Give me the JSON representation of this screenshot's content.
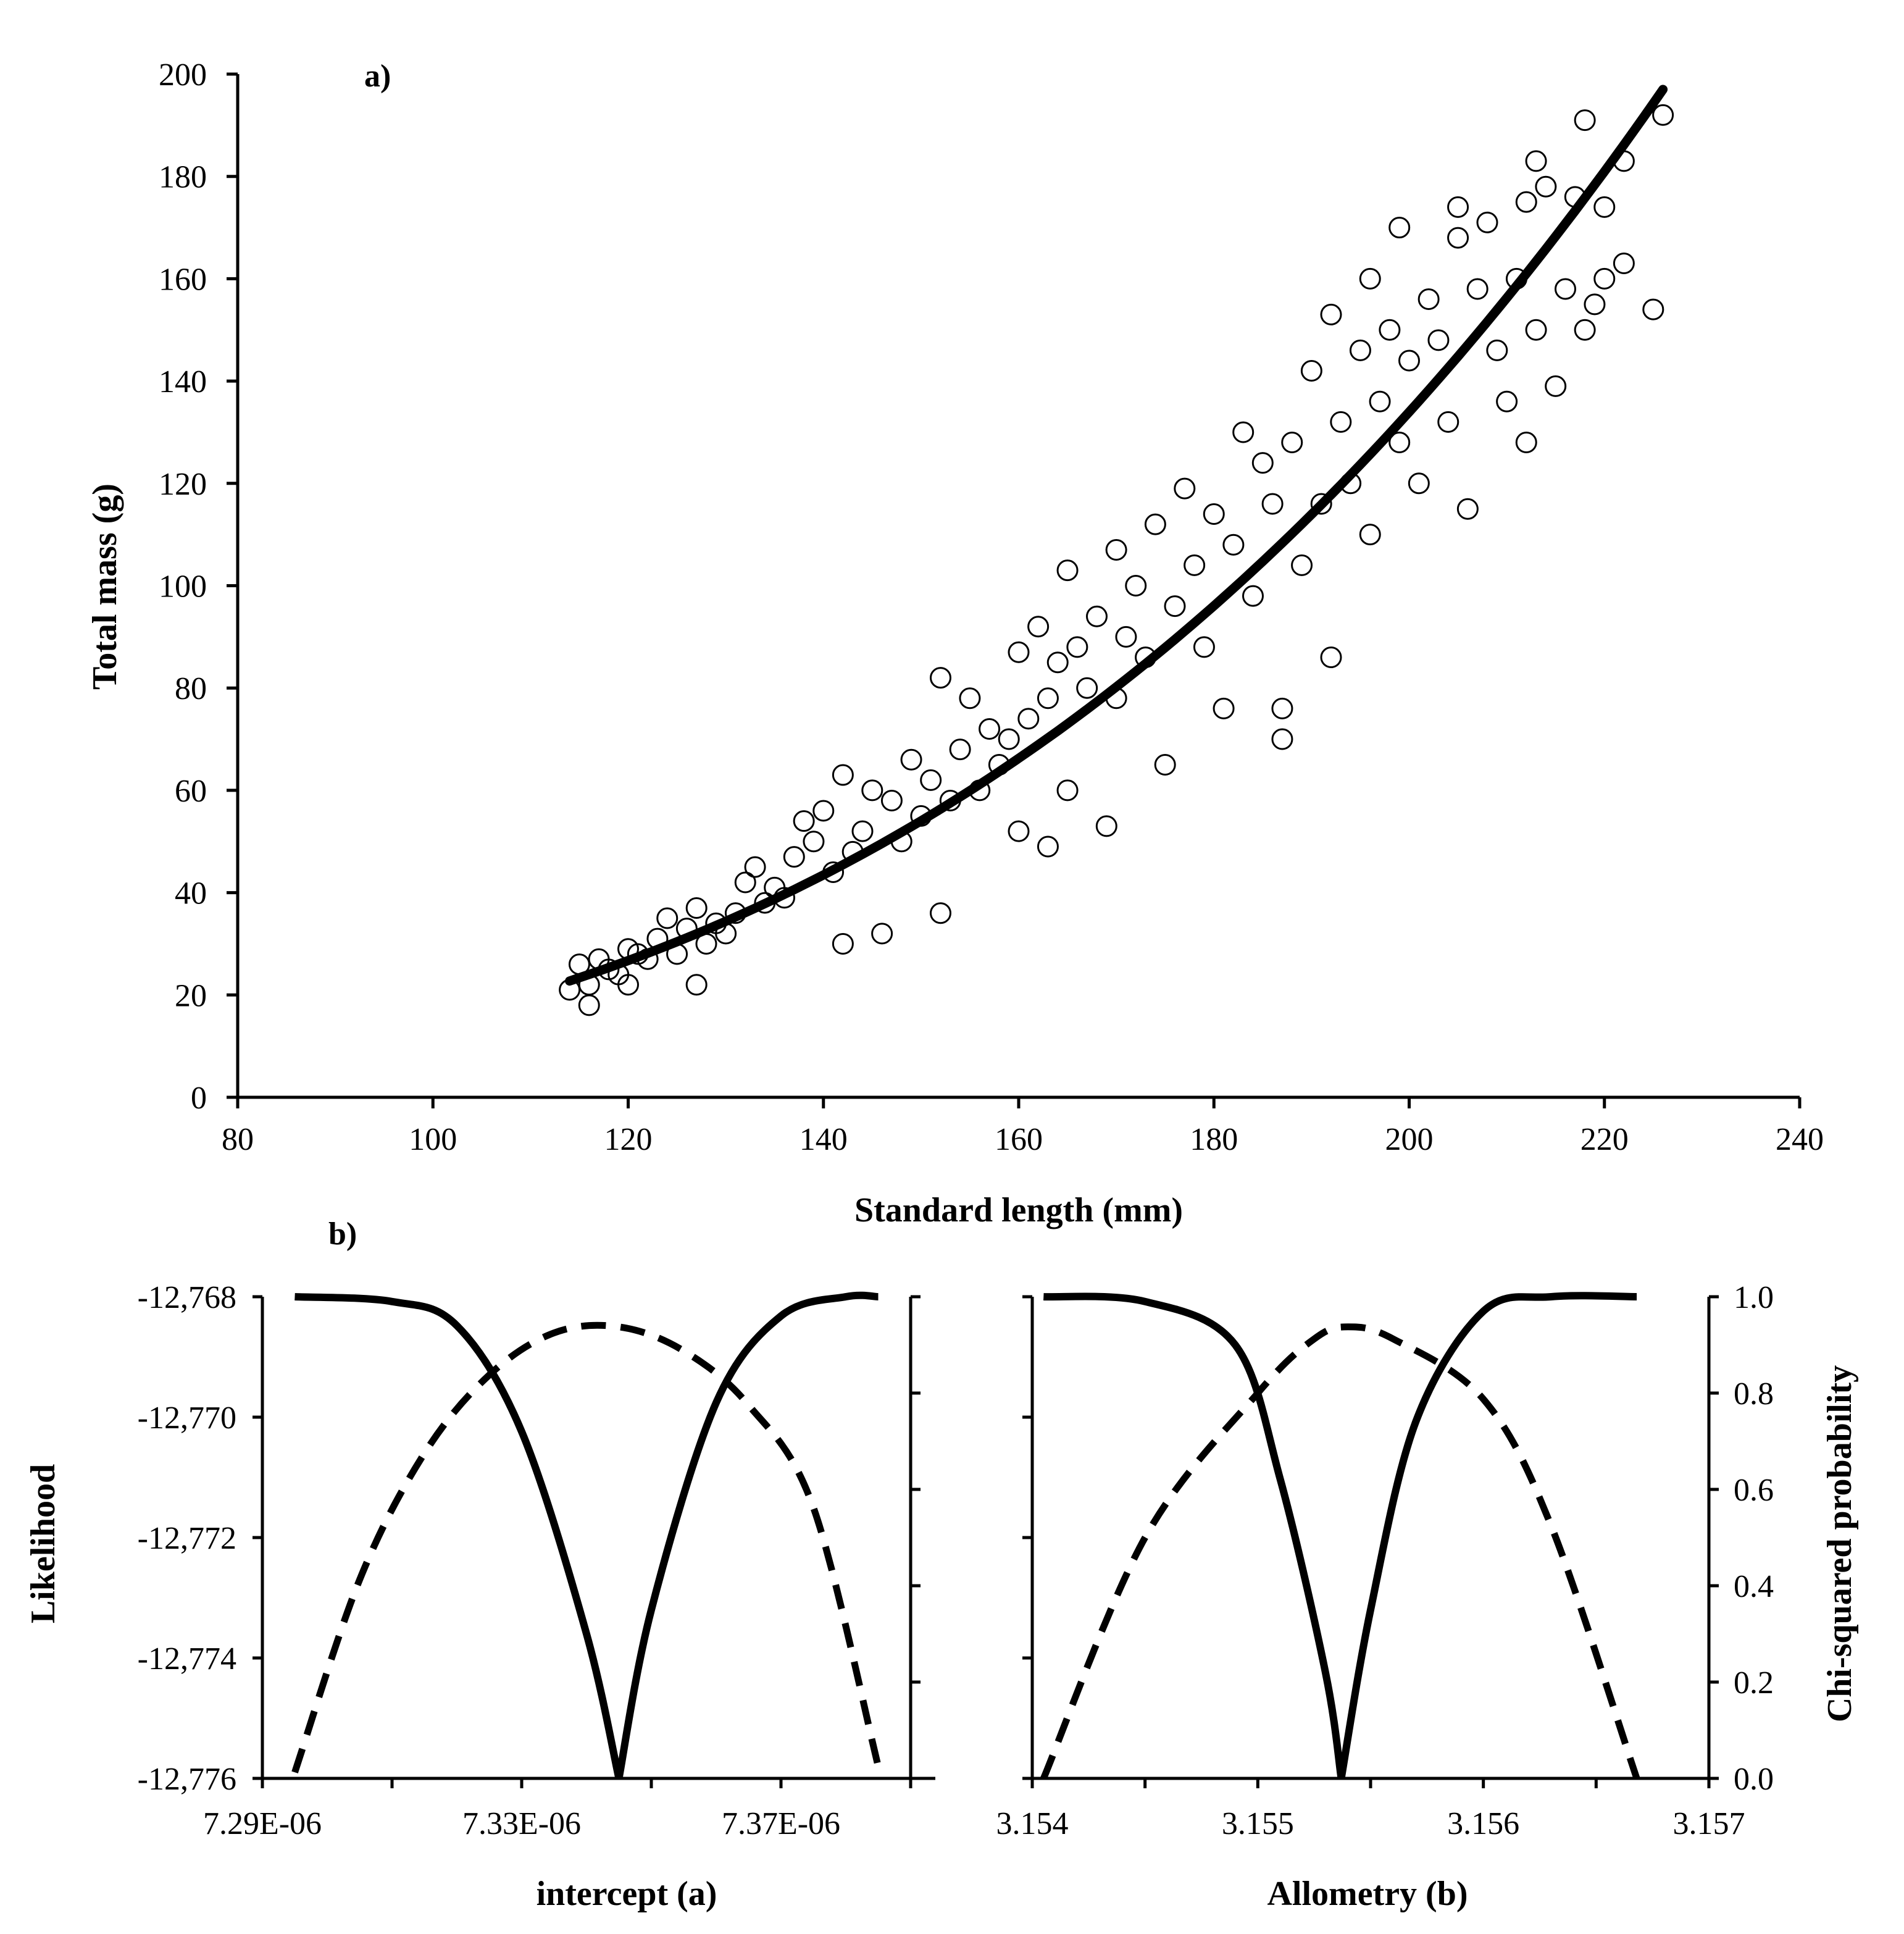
{
  "figure": {
    "panel_a_label": "a)",
    "panel_b_label": "b)"
  },
  "chart_data": [
    {
      "id": "panel-a",
      "type": "scatter",
      "title": "a)",
      "xlabel": "Standard length (mm)",
      "ylabel": "Total mass (g)",
      "xlim": [
        80,
        240
      ],
      "ylim": [
        0,
        200
      ],
      "xticks": [
        80,
        100,
        120,
        140,
        160,
        180,
        200,
        220,
        240
      ],
      "yticks": [
        0,
        20,
        40,
        60,
        80,
        100,
        120,
        140,
        160,
        180,
        200
      ],
      "grid": false,
      "series": [
        {
          "name": "observations",
          "marker": "open-circle",
          "points": [
            [
              114,
              21
            ],
            [
              115,
              26
            ],
            [
              116,
              18
            ],
            [
              116,
              22
            ],
            [
              117,
              27
            ],
            [
              118,
              25
            ],
            [
              119,
              24
            ],
            [
              120,
              22
            ],
            [
              120,
              29
            ],
            [
              121,
              28
            ],
            [
              122,
              27
            ],
            [
              123,
              31
            ],
            [
              124,
              35
            ],
            [
              125,
              28
            ],
            [
              126,
              33
            ],
            [
              127,
              22
            ],
            [
              127,
              37
            ],
            [
              128,
              30
            ],
            [
              129,
              34
            ],
            [
              130,
              32
            ],
            [
              131,
              36
            ],
            [
              132,
              42
            ],
            [
              133,
              45
            ],
            [
              134,
              38
            ],
            [
              135,
              41
            ],
            [
              136,
              39
            ],
            [
              137,
              47
            ],
            [
              138,
              54
            ],
            [
              139,
              50
            ],
            [
              140,
              56
            ],
            [
              141,
              44
            ],
            [
              142,
              63
            ],
            [
              142,
              30
            ],
            [
              143,
              48
            ],
            [
              144,
              52
            ],
            [
              145,
              60
            ],
            [
              146,
              32
            ],
            [
              147,
              58
            ],
            [
              148,
              50
            ],
            [
              149,
              66
            ],
            [
              150,
              55
            ],
            [
              151,
              62
            ],
            [
              152,
              82
            ],
            [
              152,
              36
            ],
            [
              153,
              58
            ],
            [
              154,
              68
            ],
            [
              155,
              78
            ],
            [
              156,
              60
            ],
            [
              157,
              72
            ],
            [
              158,
              65
            ],
            [
              159,
              70
            ],
            [
              160,
              87
            ],
            [
              160,
              52
            ],
            [
              161,
              74
            ],
            [
              162,
              92
            ],
            [
              163,
              78
            ],
            [
              163,
              49
            ],
            [
              164,
              85
            ],
            [
              165,
              103
            ],
            [
              165,
              60
            ],
            [
              166,
              88
            ],
            [
              167,
              80
            ],
            [
              168,
              94
            ],
            [
              169,
              53
            ],
            [
              170,
              107
            ],
            [
              170,
              78
            ],
            [
              171,
              90
            ],
            [
              172,
              100
            ],
            [
              173,
              86
            ],
            [
              174,
              112
            ],
            [
              175,
              65
            ],
            [
              176,
              96
            ],
            [
              177,
              119
            ],
            [
              178,
              104
            ],
            [
              179,
              88
            ],
            [
              180,
              114
            ],
            [
              181,
              76
            ],
            [
              182,
              108
            ],
            [
              183,
              130
            ],
            [
              184,
              98
            ],
            [
              185,
              124
            ],
            [
              186,
              116
            ],
            [
              187,
              70
            ],
            [
              187,
              76
            ],
            [
              188,
              128
            ],
            [
              189,
              104
            ],
            [
              190,
              142
            ],
            [
              191,
              116
            ],
            [
              192,
              153
            ],
            [
              192,
              86
            ],
            [
              193,
              132
            ],
            [
              194,
              120
            ],
            [
              195,
              146
            ],
            [
              196,
              160
            ],
            [
              196,
              110
            ],
            [
              197,
              136
            ],
            [
              198,
              150
            ],
            [
              199,
              128
            ],
            [
              199,
              170
            ],
            [
              200,
              144
            ],
            [
              201,
              120
            ],
            [
              202,
              156
            ],
            [
              203,
              148
            ],
            [
              204,
              132
            ],
            [
              205,
              174
            ],
            [
              205,
              168
            ],
            [
              206,
              115
            ],
            [
              207,
              158
            ],
            [
              208,
              171
            ],
            [
              209,
              146
            ],
            [
              210,
              136
            ],
            [
              211,
              160
            ],
            [
              212,
              175
            ],
            [
              212,
              128
            ],
            [
              213,
              183
            ],
            [
              213,
              150
            ],
            [
              214,
              178
            ],
            [
              215,
              139
            ],
            [
              216,
              158
            ],
            [
              217,
              176
            ],
            [
              218,
              191
            ],
            [
              218,
              150
            ],
            [
              219,
              155
            ],
            [
              220,
              174
            ],
            [
              220,
              160
            ],
            [
              222,
              183
            ],
            [
              222,
              163
            ],
            [
              225,
              154
            ],
            [
              226,
              192
            ]
          ]
        },
        {
          "name": "fitted allometric curve",
          "kind": "line",
          "function": "W = a * L^b",
          "a": 7.35e-06,
          "b": 3.1554,
          "x_range": [
            114,
            226
          ]
        }
      ]
    },
    {
      "id": "panel-b-left",
      "type": "line",
      "title": "b)",
      "xlabel": "intercept (a)",
      "ylabel": "Likelihood",
      "xlim": [
        7.29e-06,
        7.39e-06
      ],
      "xticks": [
        "7.29E-06",
        "7.33E-06",
        "7.37E-06"
      ],
      "xtick_values": [
        7.29e-06,
        7.33e-06,
        7.37e-06
      ],
      "ylim": [
        -12776,
        -12768
      ],
      "yticks": [
        "-12,768",
        "-12,770",
        "-12,772",
        "-12,774",
        "-12,776"
      ],
      "ytick_values": [
        -12768,
        -12770,
        -12772,
        -12774,
        -12776
      ],
      "y2lim": [
        0,
        1
      ],
      "series": [
        {
          "name": "likelihood profile",
          "style": "dashed",
          "axis": "left",
          "x": [
            7.295e-06,
            7.305e-06,
            7.315e-06,
            7.325e-06,
            7.335e-06,
            7.345e-06,
            7.355e-06,
            7.365e-06,
            7.375e-06,
            7.385e-06
          ],
          "y": [
            -12775.9,
            -12772.7,
            -12770.6,
            -12769.3,
            -12768.6,
            -12768.5,
            -12768.9,
            -12769.8,
            -12771.5,
            -12775.8
          ]
        },
        {
          "name": "chi-squared probability",
          "style": "solid",
          "axis": "right",
          "x": [
            7.295e-06,
            7.31e-06,
            7.32e-06,
            7.33e-06,
            7.34e-06,
            7.345e-06,
            7.35e-06,
            7.36e-06,
            7.37e-06,
            7.38e-06,
            7.385e-06
          ],
          "y": [
            1.0,
            0.99,
            0.94,
            0.72,
            0.3,
            0.0,
            0.35,
            0.78,
            0.96,
            1.0,
            1.0
          ]
        }
      ]
    },
    {
      "id": "panel-b-right",
      "type": "line",
      "xlabel": "Allometry (b)",
      "y2label": "Chi-squared probability",
      "xlim": [
        3.154,
        3.157
      ],
      "xticks": [
        "3.154",
        "3.155",
        "3.156",
        "3.157"
      ],
      "xtick_values": [
        3.154,
        3.155,
        3.156,
        3.157
      ],
      "ylim": [
        -12776,
        -12768
      ],
      "y2lim": [
        0,
        1
      ],
      "y2ticks": [
        "0.0",
        "0.2",
        "0.4",
        "0.6",
        "0.8",
        "1.0"
      ],
      "y2tick_values": [
        0,
        0.2,
        0.4,
        0.6,
        0.8,
        1.0
      ],
      "series": [
        {
          "name": "likelihood profile",
          "style": "dashed",
          "axis": "left",
          "x": [
            3.15405,
            3.1545,
            3.155,
            3.15525,
            3.1554,
            3.1556,
            3.156,
            3.1563,
            3.15668
          ],
          "y": [
            -12776.0,
            -12772.0,
            -12769.6,
            -12768.7,
            -12768.5,
            -12768.7,
            -12769.7,
            -12771.8,
            -12776.0
          ]
        },
        {
          "name": "chi-squared probability",
          "style": "solid",
          "axis": "right",
          "x": [
            3.15405,
            3.1545,
            3.1549,
            3.1551,
            3.1553,
            3.15537,
            3.1555,
            3.1557,
            3.156,
            3.1563,
            3.15668
          ],
          "y": [
            1.0,
            0.99,
            0.9,
            0.62,
            0.22,
            0.0,
            0.35,
            0.74,
            0.97,
            1.0,
            1.0
          ]
        }
      ]
    }
  ]
}
